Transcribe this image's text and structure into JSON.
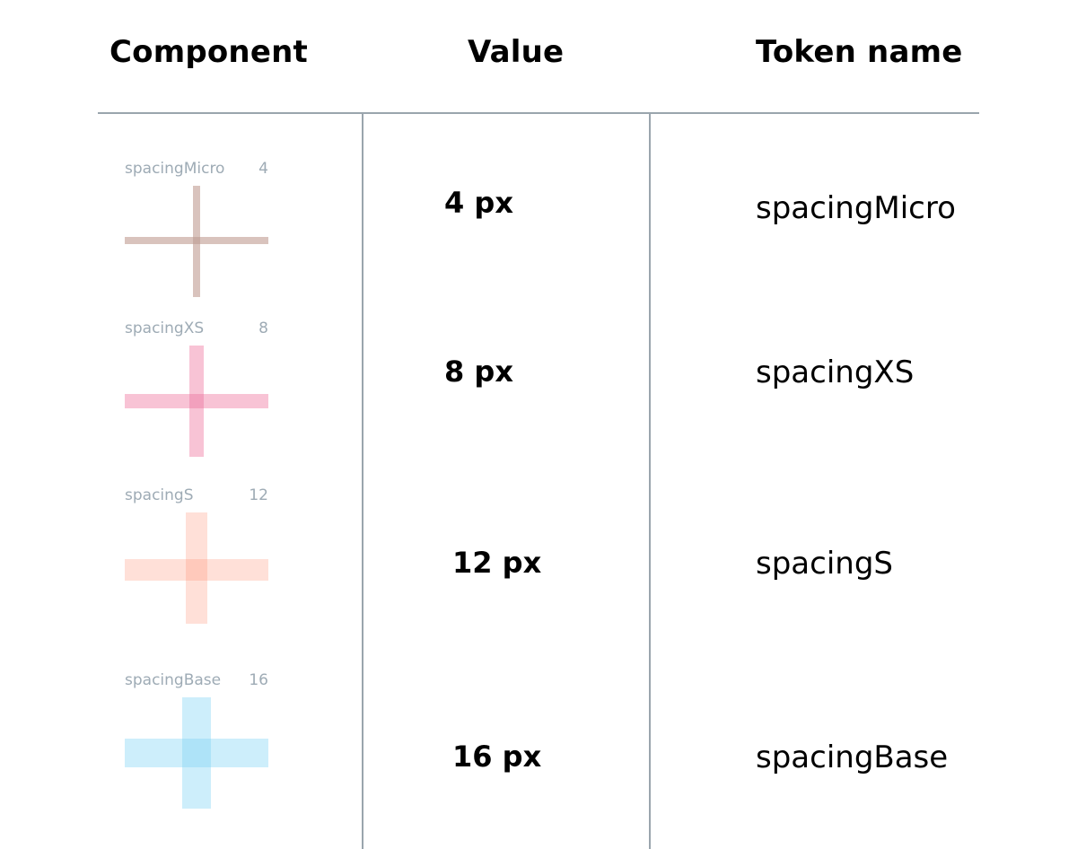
{
  "header": {
    "component": "Component",
    "value": "Value",
    "token": "Token name"
  },
  "rows": [
    {
      "swatch_label": "spacingMicro",
      "swatch_number": "4",
      "value": "4 px",
      "token": "spacingMicro",
      "color": "#d9c3bd",
      "overlap_color": "#c8aba3"
    },
    {
      "swatch_label": "spacingXS",
      "swatch_number": "8",
      "value": "8 px",
      "token": "spacingXS",
      "color": "#f8c3d5",
      "overlap_color": "#f2a0bd"
    },
    {
      "swatch_label": "spacingS",
      "swatch_number": "12",
      "value": "12 px",
      "token": "spacingS",
      "color": "#ffe0d8",
      "overlap_color": "#ffc9bb"
    },
    {
      "swatch_label": "spacingBase",
      "swatch_number": "16",
      "value": "16 px",
      "token": "spacingBase",
      "color": "#cdeefb",
      "overlap_color": "#aee3f8"
    }
  ]
}
